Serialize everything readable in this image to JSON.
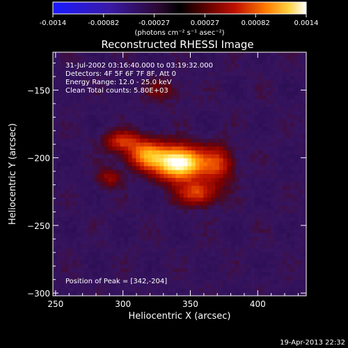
{
  "chart_data": {
    "type": "heatmap",
    "title": "Reconstructed RHESSI Image",
    "xlabel": "Heliocentric X (arcsec)",
    "ylabel": "Heliocentric Y (arcsec)",
    "xlim": [
      248,
      436
    ],
    "ylim": [
      -302,
      -122
    ],
    "x_ticks": [
      250,
      300,
      350,
      400
    ],
    "y_ticks": [
      -150,
      -200,
      -250,
      -300
    ],
    "colorbar": {
      "min": -0.0014,
      "max": 0.0014,
      "tick_labels": [
        "-0.0014",
        "-0.00082",
        "-0.00027",
        "0.00027",
        "0.00082",
        "0.0014"
      ],
      "unit_label": "(photons cm⁻² s⁻¹ asec⁻²)"
    },
    "info_lines": [
      "31-Jul-2002 03:16:40.000 to 03:19:32.000",
      "Detectors: 4F 5F 6F 7F 8F, Att 0",
      "Energy Range: 12.0 - 25.0 keV",
      "Clean     Total counts: 5.80E+03"
    ],
    "peak_label": "Position of Peak = [342,-204]",
    "peak": {
      "x": 342,
      "y": -204
    },
    "sources": [
      {
        "x": 342,
        "y": -204,
        "sx": 12,
        "sy": 8,
        "amp": 1.0
      },
      {
        "x": 318,
        "y": -198,
        "sx": 10,
        "sy": 7,
        "amp": 0.55
      },
      {
        "x": 300,
        "y": -188,
        "sx": 9,
        "sy": 5,
        "amp": 0.35
      },
      {
        "x": 355,
        "y": -226,
        "sx": 10,
        "sy": 6,
        "amp": 0.4
      },
      {
        "x": 370,
        "y": -205,
        "sx": 8,
        "sy": 9,
        "amp": 0.35
      },
      {
        "x": 290,
        "y": -215,
        "sx": 6,
        "sy": 5,
        "amp": 0.2
      },
      {
        "x": 330,
        "y": -150,
        "sx": 10,
        "sy": 6,
        "amp": 0.12
      }
    ],
    "background_level": 0.05
  },
  "timestamp": "19-Apr-2013 22:32"
}
